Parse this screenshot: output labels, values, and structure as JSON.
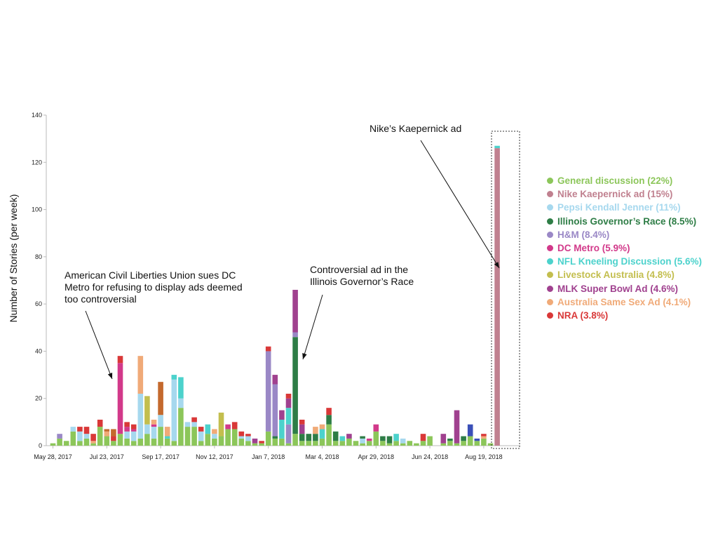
{
  "chart_data": {
    "type": "bar",
    "stacked": true,
    "title": "",
    "ylabel": "Number of Stories (per week)",
    "xlabel": "",
    "ylim": [
      0,
      140
    ],
    "yticks": [
      0,
      20,
      40,
      60,
      80,
      100,
      120,
      140
    ],
    "x_tick_labels": [
      "May 28, 2017",
      "Jul 23, 2017",
      "Sep 17, 2017",
      "Nov 12, 2017",
      "Jan 7, 2018",
      "Mar 4, 2018",
      "Apr 29, 2018",
      "Jun 24, 2018",
      "Aug 19, 2018"
    ],
    "x_tick_every": 8,
    "grid": false,
    "legend_position": "right",
    "series": [
      {
        "name": "General discussion (22%)",
        "color": "#8cc65a"
      },
      {
        "name": "Nike Kaepernick ad (15%)",
        "color": "#c0808f"
      },
      {
        "name": "Pepsi Kendall Jenner (11%)",
        "color": "#a6d8ee"
      },
      {
        "name": "Illinois Governor’s Race (8.5%)",
        "color": "#2e7d46"
      },
      {
        "name": "H&M (8.4%)",
        "color": "#9a88c6"
      },
      {
        "name": "DC Metro (5.9%)",
        "color": "#d2398a"
      },
      {
        "name": "NFL Kneeling Discussion (5.6%)",
        "color": "#4cd2cc"
      },
      {
        "name": "Livestock Australia (4.8%)",
        "color": "#c3be4e"
      },
      {
        "name": "MLK Super Bowl Ad (4.6%)",
        "color": "#a0418f"
      },
      {
        "name": "Australia Same Sex Ad (4.1%)",
        "color": "#f0aa78"
      },
      {
        "name": "NRA (3.8%)",
        "color": "#d93838"
      }
    ],
    "other_colors": {
      "Other (brown)": "#c4692d",
      "Other (blue)": "#3a4fb8"
    },
    "weeks": [
      [
        {
          "s": 0,
          "v": 1
        }
      ],
      [
        {
          "s": 0,
          "v": 3
        },
        {
          "s": 4,
          "v": 2
        }
      ],
      [
        {
          "s": 0,
          "v": 2
        }
      ],
      [
        {
          "s": 0,
          "v": 6
        },
        {
          "s": 2,
          "v": 2
        }
      ],
      [
        {
          "s": 0,
          "v": 2
        },
        {
          "s": 2,
          "v": 4
        },
        {
          "s": 10,
          "v": 2
        }
      ],
      [
        {
          "s": 0,
          "v": 3
        },
        {
          "s": 2,
          "v": 2
        },
        {
          "s": 10,
          "v": 3
        }
      ],
      [
        {
          "s": 0,
          "v": 1
        },
        {
          "s": 9,
          "v": 1
        },
        {
          "s": 10,
          "v": 3
        }
      ],
      [
        {
          "s": 0,
          "v": 8
        },
        {
          "s": 10,
          "v": 3
        }
      ],
      [
        {
          "s": 0,
          "v": 4
        },
        {
          "s": 9,
          "v": 2
        },
        {
          "s": "Other (brown)",
          "v": 1
        }
      ],
      [
        {
          "s": 0,
          "v": 2
        },
        {
          "s": 10,
          "v": 2
        },
        {
          "s": "Other (brown)",
          "v": 3
        }
      ],
      [
        {
          "s": 0,
          "v": 5
        },
        {
          "s": 5,
          "v": 30
        },
        {
          "s": 10,
          "v": 3
        }
      ],
      [
        {
          "s": 0,
          "v": 3
        },
        {
          "s": 2,
          "v": 3
        },
        {
          "s": 5,
          "v": 2
        },
        {
          "s": 10,
          "v": 2
        }
      ],
      [
        {
          "s": 0,
          "v": 2
        },
        {
          "s": 2,
          "v": 4
        },
        {
          "s": 5,
          "v": 1
        },
        {
          "s": 10,
          "v": 2
        }
      ],
      [
        {
          "s": 0,
          "v": 3
        },
        {
          "s": 2,
          "v": 19
        },
        {
          "s": 9,
          "v": 16
        }
      ],
      [
        {
          "s": 0,
          "v": 5
        },
        {
          "s": 2,
          "v": 4
        },
        {
          "s": 7,
          "v": 12
        }
      ],
      [
        {
          "s": 0,
          "v": 3
        },
        {
          "s": 2,
          "v": 5
        },
        {
          "s": 5,
          "v": 1
        },
        {
          "s": 9,
          "v": 2
        }
      ],
      [
        {
          "s": 0,
          "v": 8
        },
        {
          "s": 2,
          "v": 5
        },
        {
          "s": "Other (brown)",
          "v": 14
        }
      ],
      [
        {
          "s": 0,
          "v": 3
        },
        {
          "s": 6,
          "v": 1
        },
        {
          "s": 9,
          "v": 4
        }
      ],
      [
        {
          "s": 0,
          "v": 2
        },
        {
          "s": 2,
          "v": 26
        },
        {
          "s": 6,
          "v": 2
        }
      ],
      [
        {
          "s": 0,
          "v": 16
        },
        {
          "s": 2,
          "v": 4
        },
        {
          "s": 6,
          "v": 9
        }
      ],
      [
        {
          "s": 0,
          "v": 8
        },
        {
          "s": 2,
          "v": 2
        }
      ],
      [
        {
          "s": 0,
          "v": 8
        },
        {
          "s": 2,
          "v": 2
        },
        {
          "s": 10,
          "v": 2
        }
      ],
      [
        {
          "s": 0,
          "v": 2
        },
        {
          "s": 2,
          "v": 4
        },
        {
          "s": 10,
          "v": 2
        }
      ],
      [
        {
          "s": 0,
          "v": 5
        },
        {
          "s": 6,
          "v": 4
        }
      ],
      [
        {
          "s": 0,
          "v": 3
        },
        {
          "s": 2,
          "v": 2
        },
        {
          "s": 9,
          "v": 2
        }
      ],
      [
        {
          "s": 0,
          "v": 4
        },
        {
          "s": 7,
          "v": 10
        }
      ],
      [
        {
          "s": 0,
          "v": 7
        },
        {
          "s": 5,
          "v": 2
        }
      ],
      [
        {
          "s": 0,
          "v": 7
        },
        {
          "s": 10,
          "v": 3
        }
      ],
      [
        {
          "s": 0,
          "v": 3
        },
        {
          "s": 2,
          "v": 1
        },
        {
          "s": 10,
          "v": 2
        }
      ],
      [
        {
          "s": 0,
          "v": 2
        },
        {
          "s": 2,
          "v": 2
        },
        {
          "s": 10,
          "v": 1
        }
      ],
      [
        {
          "s": 0,
          "v": 1
        },
        {
          "s": 8,
          "v": 2
        }
      ],
      [
        {
          "s": 0,
          "v": 1
        },
        {
          "s": 10,
          "v": 1
        }
      ],
      [
        {
          "s": 0,
          "v": 6
        },
        {
          "s": 4,
          "v": 34
        },
        {
          "s": 10,
          "v": 2
        }
      ],
      [
        {
          "s": 0,
          "v": 3
        },
        {
          "s": 3,
          "v": 1
        },
        {
          "s": 4,
          "v": 22
        },
        {
          "s": 8,
          "v": 4
        }
      ],
      [
        {
          "s": 0,
          "v": 3
        },
        {
          "s": 6,
          "v": 8
        },
        {
          "s": 8,
          "v": 4
        }
      ],
      [
        {
          "s": 0,
          "v": 1
        },
        {
          "s": 4,
          "v": 8
        },
        {
          "s": 6,
          "v": 7
        },
        {
          "s": 8,
          "v": 4
        },
        {
          "s": 10,
          "v": 2
        }
      ],
      [
        {
          "s": 0,
          "v": 5
        },
        {
          "s": 3,
          "v": 41
        },
        {
          "s": 4,
          "v": 2
        },
        {
          "s": 8,
          "v": 18
        }
      ],
      [
        {
          "s": 0,
          "v": 2
        },
        {
          "s": 3,
          "v": 3
        },
        {
          "s": 8,
          "v": 4
        },
        {
          "s": 10,
          "v": 2
        }
      ],
      [
        {
          "s": 0,
          "v": 2
        },
        {
          "s": 3,
          "v": 3
        }
      ],
      [
        {
          "s": 0,
          "v": 2
        },
        {
          "s": 3,
          "v": 3
        },
        {
          "s": 9,
          "v": 3
        }
      ],
      [
        {
          "s": 0,
          "v": 3
        },
        {
          "s": 6,
          "v": 4
        },
        {
          "s": 9,
          "v": 2
        }
      ],
      [
        {
          "s": 0,
          "v": 9
        },
        {
          "s": 3,
          "v": 4
        },
        {
          "s": 10,
          "v": 3
        }
      ],
      [
        {
          "s": 0,
          "v": 2
        },
        {
          "s": 3,
          "v": 4
        }
      ],
      [
        {
          "s": 0,
          "v": 2
        },
        {
          "s": 6,
          "v": 2
        }
      ],
      [
        {
          "s": 0,
          "v": 3
        },
        {
          "s": 8,
          "v": 2
        }
      ],
      [
        {
          "s": 0,
          "v": 2
        }
      ],
      [
        {
          "s": 0,
          "v": 1
        },
        {
          "s": 2,
          "v": 2
        },
        {
          "s": 3,
          "v": 1
        }
      ],
      [
        {
          "s": 0,
          "v": 2
        },
        {
          "s": 5,
          "v": 1
        }
      ],
      [
        {
          "s": 0,
          "v": 6
        },
        {
          "s": 5,
          "v": 3
        }
      ],
      [
        {
          "s": 0,
          "v": 2
        },
        {
          "s": 3,
          "v": 2
        }
      ],
      [
        {
          "s": 0,
          "v": 1
        },
        {
          "s": 3,
          "v": 3
        }
      ],
      [
        {
          "s": 0,
          "v": 2
        },
        {
          "s": 6,
          "v": 3
        }
      ],
      [
        {
          "s": 0,
          "v": 1
        },
        {
          "s": 2,
          "v": 2
        }
      ],
      [
        {
          "s": 0,
          "v": 2
        }
      ],
      [
        {
          "s": 0,
          "v": 1
        }
      ],
      [
        {
          "s": 0,
          "v": 2
        },
        {
          "s": 10,
          "v": 3
        }
      ],
      [
        {
          "s": 0,
          "v": 4
        }
      ],
      [
        {
          "s": 0,
          "v": 0
        }
      ],
      [
        {
          "s": 0,
          "v": 1
        },
        {
          "s": 8,
          "v": 4
        }
      ],
      [
        {
          "s": 0,
          "v": 2
        },
        {
          "s": 3,
          "v": 1
        }
      ],
      [
        {
          "s": 0,
          "v": 1
        },
        {
          "s": 8,
          "v": 14
        }
      ],
      [
        {
          "s": 0,
          "v": 2
        },
        {
          "s": 3,
          "v": 2
        }
      ],
      [
        {
          "s": 0,
          "v": 4
        },
        {
          "s": "Other (blue)",
          "v": 5
        }
      ],
      [
        {
          "s": 0,
          "v": 2
        },
        {
          "s": "Other (blue)",
          "v": 1
        }
      ],
      [
        {
          "s": 0,
          "v": 3
        },
        {
          "s": 9,
          "v": 1
        },
        {
          "s": 10,
          "v": 1
        }
      ],
      [
        {
          "s": 0,
          "v": 1
        }
      ],
      [
        {
          "s": 1,
          "v": 126
        },
        {
          "s": 6,
          "v": 1
        }
      ]
    ],
    "annotations": [
      {
        "lines": [
          "American Civil Liberties Union sues DC",
          "Metro for refusing to display ads deemed",
          "too controversial"
        ],
        "target_week": 10
      },
      {
        "lines": [
          "Controversial ad in the",
          "Illinois Governor’s Race"
        ],
        "target_week": 36
      },
      {
        "lines": [
          "Nike’s Kaepernick ad"
        ],
        "target_week": 66
      }
    ]
  }
}
